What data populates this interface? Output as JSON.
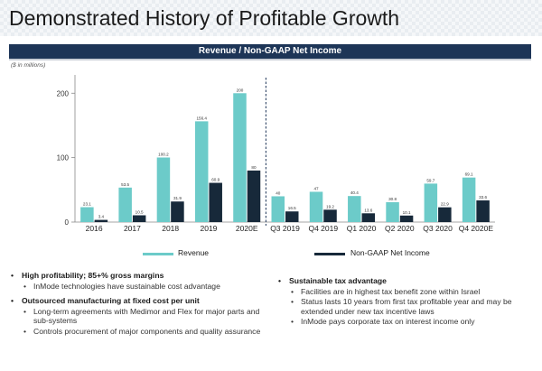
{
  "title": "Demonstrated History of Profitable Growth",
  "chart_banner": "Revenue / Non-GAAP Net Income",
  "units_note": "($ in millions)",
  "colors": {
    "revenue": "#6ccbc9",
    "net_income": "#17293a",
    "banner": "#1d3557",
    "divider": "#1d3557"
  },
  "chart_data": {
    "type": "bar",
    "categories": [
      "2016",
      "2017",
      "2018",
      "2019",
      "2020E",
      "Q3 2019",
      "Q4 2019",
      "Q1 2020",
      "Q2 2020",
      "Q3 2020",
      "Q4 2020E"
    ],
    "series": [
      {
        "name": "Revenue",
        "values": [
          23.1,
          53.5,
          100.2,
          156.4,
          200,
          40,
          47,
          40.4,
          30.8,
          59.7,
          69.1
        ],
        "labels": [
          "23.1",
          "53.5",
          "100.2",
          "156.4",
          "200",
          "40",
          "47",
          "40.4",
          "30.8",
          "59.7",
          "69.1"
        ]
      },
      {
        "name": "Non-GAAP Net Income",
        "values": [
          3.4,
          10.5,
          31.9,
          60.9,
          80,
          16.5,
          19.2,
          13.6,
          10.1,
          22.9,
          33.6
        ],
        "labels": [
          "3.4",
          "10.5",
          "31.9",
          "60.9",
          "80",
          "16.5",
          "19.2",
          "13.6",
          "10.1",
          "22.9",
          "33.6"
        ]
      }
    ],
    "yticks": [
      "0",
      "100",
      "200"
    ],
    "ylim": [
      0,
      220
    ],
    "grid": false,
    "divider_after_category": "2020E",
    "legend": [
      "Revenue",
      "Non-GAAP Net Income"
    ],
    "legend_position": "bottom"
  },
  "left_bullets": [
    {
      "heading": "High profitability; 85+% gross margins",
      "subs": [
        "InMode technologies have sustainable cost advantage"
      ]
    },
    {
      "heading": "Outsourced manufacturing at fixed cost per unit",
      "subs": [
        "Long-term agreements with Medimor and Flex for major parts and sub-systems",
        "Controls procurement of major components and quality assurance"
      ]
    }
  ],
  "right_bullets": [
    {
      "heading": "Sustainable tax advantage",
      "subs": [
        "Facilities are in highest tax benefit zone within Israel",
        "Status lasts 10 years from first tax profitable year and may be extended under new tax incentive laws",
        "InMode pays corporate tax on interest income only"
      ]
    }
  ]
}
